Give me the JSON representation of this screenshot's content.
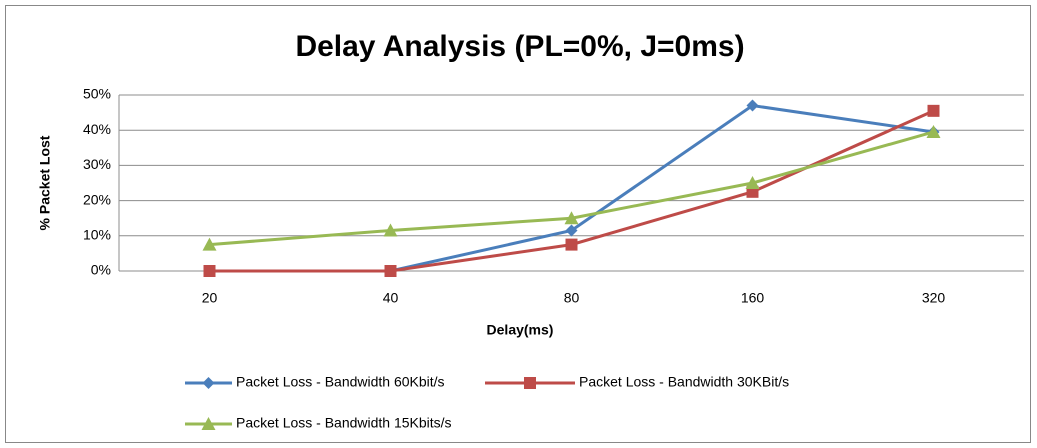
{
  "chart_data": {
    "type": "line",
    "title": "Delay Analysis (PL=0%, J=0ms)",
    "x_label": "Delay(ms)",
    "y_label": "% Packet Lost",
    "categories": [
      "20",
      "40",
      "80",
      "160",
      "320"
    ],
    "series": [
      {
        "name": "Packet Loss - Bandwidth 60Kbit/s",
        "color": "#4a7ebb",
        "marker": "diamond",
        "values": [
          0,
          0,
          11.5,
          47,
          39.5
        ]
      },
      {
        "name": "Packet Loss - Bandwidth 30KBit/s",
        "color": "#be4b48",
        "marker": "square",
        "values": [
          0,
          0,
          7.5,
          22.5,
          45.5
        ]
      },
      {
        "name": "Packet Loss - Bandwidth 15Kbits/s",
        "color": "#98b954",
        "marker": "triangle",
        "values": [
          7.5,
          11.5,
          15,
          25,
          39.5
        ]
      }
    ],
    "ylim": [
      0,
      50
    ],
    "yticks": [
      {
        "value": 0,
        "label": "0%"
      },
      {
        "value": 10,
        "label": "10%"
      },
      {
        "value": 20,
        "label": "20%"
      },
      {
        "value": 30,
        "label": "30%"
      },
      {
        "value": 40,
        "label": "40%"
      },
      {
        "value": 50,
        "label": "50%"
      }
    ],
    "grid": true,
    "legend": "bottom"
  }
}
